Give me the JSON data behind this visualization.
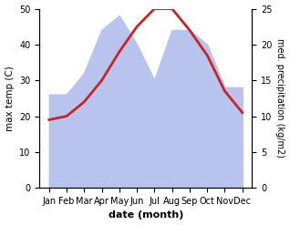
{
  "months": [
    "Jan",
    "Feb",
    "Mar",
    "Apr",
    "May",
    "Jun",
    "Jul",
    "Aug",
    "Sep",
    "Oct",
    "Nov",
    "Dec"
  ],
  "temperature": [
    19,
    20,
    24,
    30,
    38,
    45,
    50,
    50,
    44,
    37,
    27,
    21
  ],
  "precipitation": [
    13,
    13,
    16,
    22,
    24,
    20,
    15,
    22,
    22,
    20,
    14,
    14
  ],
  "temp_color": "#cc2222",
  "precip_color": "#b8c4ee",
  "left_ylim": [
    0,
    50
  ],
  "right_ylim": [
    0,
    25
  ],
  "left_yticks": [
    0,
    10,
    20,
    30,
    40,
    50
  ],
  "right_yticks": [
    0,
    5,
    10,
    15,
    20,
    25
  ],
  "xlabel": "date (month)",
  "ylabel_left": "max temp (C)",
  "ylabel_right": "med. precipitation (kg/m2)"
}
